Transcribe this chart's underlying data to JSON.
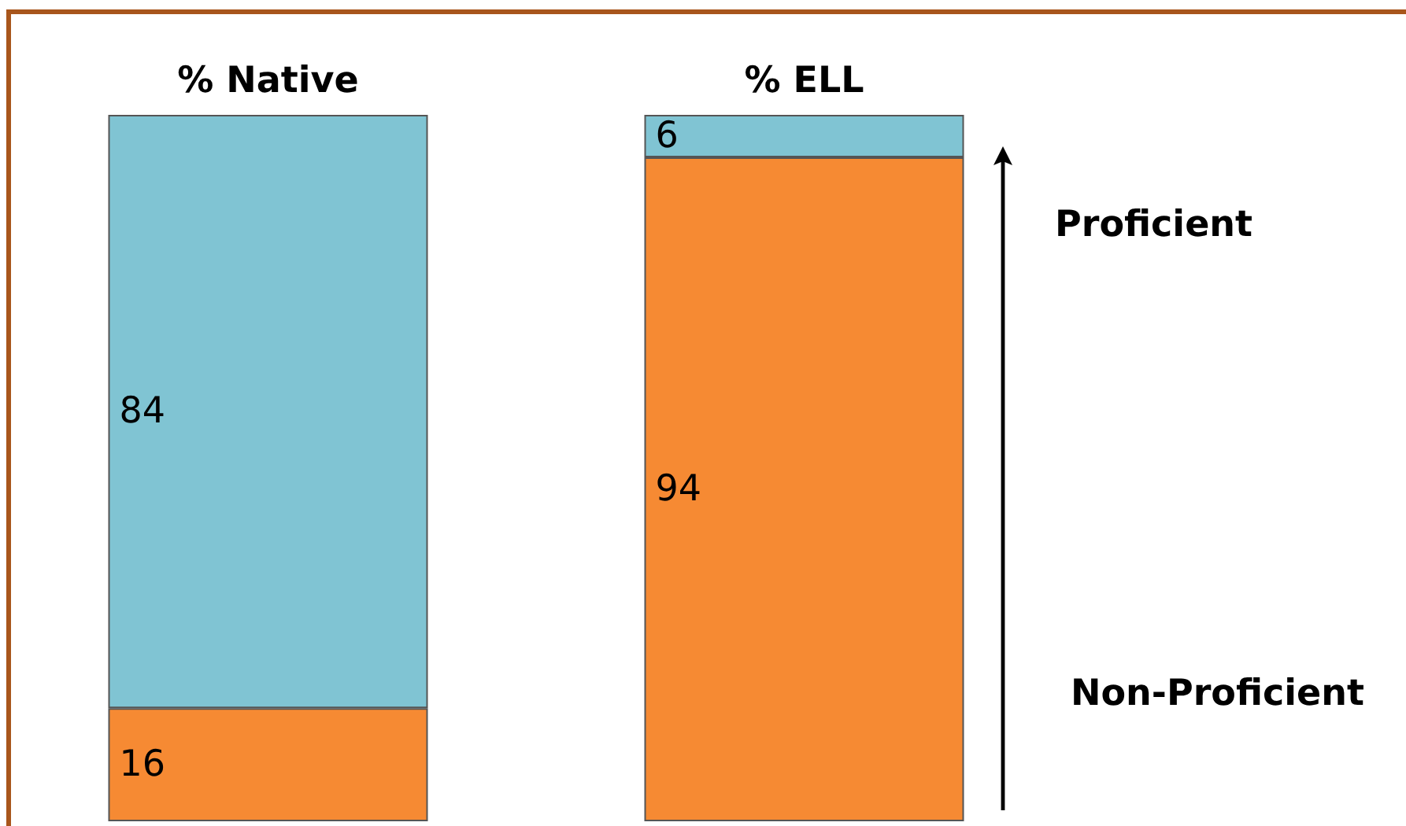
{
  "chart_data": {
    "type": "bar",
    "stacked": true,
    "data_labels": true,
    "categories": [
      "% Native",
      "% ELL"
    ],
    "series": [
      {
        "color": "#f68a33",
        "values": [
          16,
          94
        ]
      },
      {
        "color": "#80c4d3",
        "values": [
          84,
          6
        ]
      }
    ],
    "annotations": [
      "Proficient",
      "Non-Proficient"
    ]
  }
}
